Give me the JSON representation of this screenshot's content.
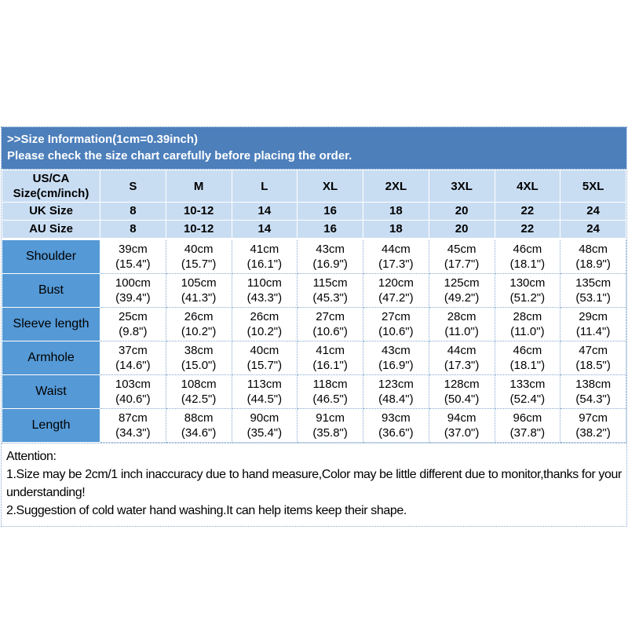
{
  "banner": {
    "title": ">>Size Information(1cm=0.39inch)",
    "subtitle": "Please check the size chart carefully before placing the order."
  },
  "table": {
    "corner": {
      "line1": "US/CA",
      "line2": "Size(cm/inch)"
    },
    "sizes": [
      "S",
      "M",
      "L",
      "XL",
      "2XL",
      "3XL",
      "4XL",
      "5XL"
    ],
    "uk": {
      "label": "UK Size",
      "values": [
        "8",
        "10-12",
        "14",
        "16",
        "18",
        "20",
        "22",
        "24"
      ]
    },
    "au": {
      "label": "AU Size",
      "values": [
        "8",
        "10-12",
        "14",
        "16",
        "18",
        "20",
        "22",
        "24"
      ]
    },
    "measurements": [
      {
        "label": "Shoulder",
        "cm": [
          "39cm",
          "40cm",
          "41cm",
          "43cm",
          "44cm",
          "45cm",
          "46cm",
          "48cm"
        ],
        "inch": [
          "(15.4\")",
          "(15.7\")",
          "(16.1\")",
          "(16.9\")",
          "(17.3\")",
          "(17.7\")",
          "(18.1\")",
          "(18.9\")"
        ]
      },
      {
        "label": "Bust",
        "cm": [
          "100cm",
          "105cm",
          "110cm",
          "115cm",
          "120cm",
          "125cm",
          "130cm",
          "135cm"
        ],
        "inch": [
          "(39.4\")",
          "(41.3\")",
          "(43.3\")",
          "(45.3\")",
          "(47.2\")",
          "(49.2\")",
          "(51.2\")",
          "(53.1\")"
        ]
      },
      {
        "label": "Sleeve length",
        "cm": [
          "25cm",
          "26cm",
          "26cm",
          "27cm",
          "27cm",
          "28cm",
          "28cm",
          "29cm"
        ],
        "inch": [
          "(9.8\")",
          "(10.2\")",
          "(10.2\")",
          "(10.6\")",
          "(10.6\")",
          "(11.0\")",
          "(11.0\")",
          "(11.4\")"
        ]
      },
      {
        "label": "Armhole",
        "cm": [
          "37cm",
          "38cm",
          "40cm",
          "41cm",
          "43cm",
          "44cm",
          "46cm",
          "47cm"
        ],
        "inch": [
          "(14.6\")",
          "(15.0\")",
          "(15.7\")",
          "(16.1\")",
          "(16.9\")",
          "(17.3\")",
          "(18.1\")",
          "(18.5\")"
        ]
      },
      {
        "label": "Waist",
        "cm": [
          "103cm",
          "108cm",
          "113cm",
          "118cm",
          "123cm",
          "128cm",
          "133cm",
          "138cm"
        ],
        "inch": [
          "(40.6\")",
          "(42.5\")",
          "(44.5\")",
          "(46.5\")",
          "(48.4\")",
          "(50.4\")",
          "(52.4\")",
          "(54.3\")"
        ]
      },
      {
        "label": "Length",
        "cm": [
          "87cm",
          "88cm",
          "90cm",
          "91cm",
          "93cm",
          "94cm",
          "96cm",
          "97cm"
        ],
        "inch": [
          "(34.3\")",
          "(34.6\")",
          "(35.4\")",
          "(35.8\")",
          "(36.6\")",
          "(37.0\")",
          "(37.8\")",
          "(38.2\")"
        ]
      }
    ]
  },
  "attention": {
    "title": "Attention:",
    "line1": "1.Size may be 2cm/1 inch inaccuracy due to hand measure,Color may be little different due to monitor,thanks for your understanding!",
    "line2": "2.Suggestion of cold water hand washing.It can help items keep their shape."
  },
  "colors": {
    "banner_bg": "#4d7fbb",
    "header_row_bg": "#c9ddf2",
    "label_col_bg": "#5599d6",
    "grid_dot": "#86a9cd"
  }
}
